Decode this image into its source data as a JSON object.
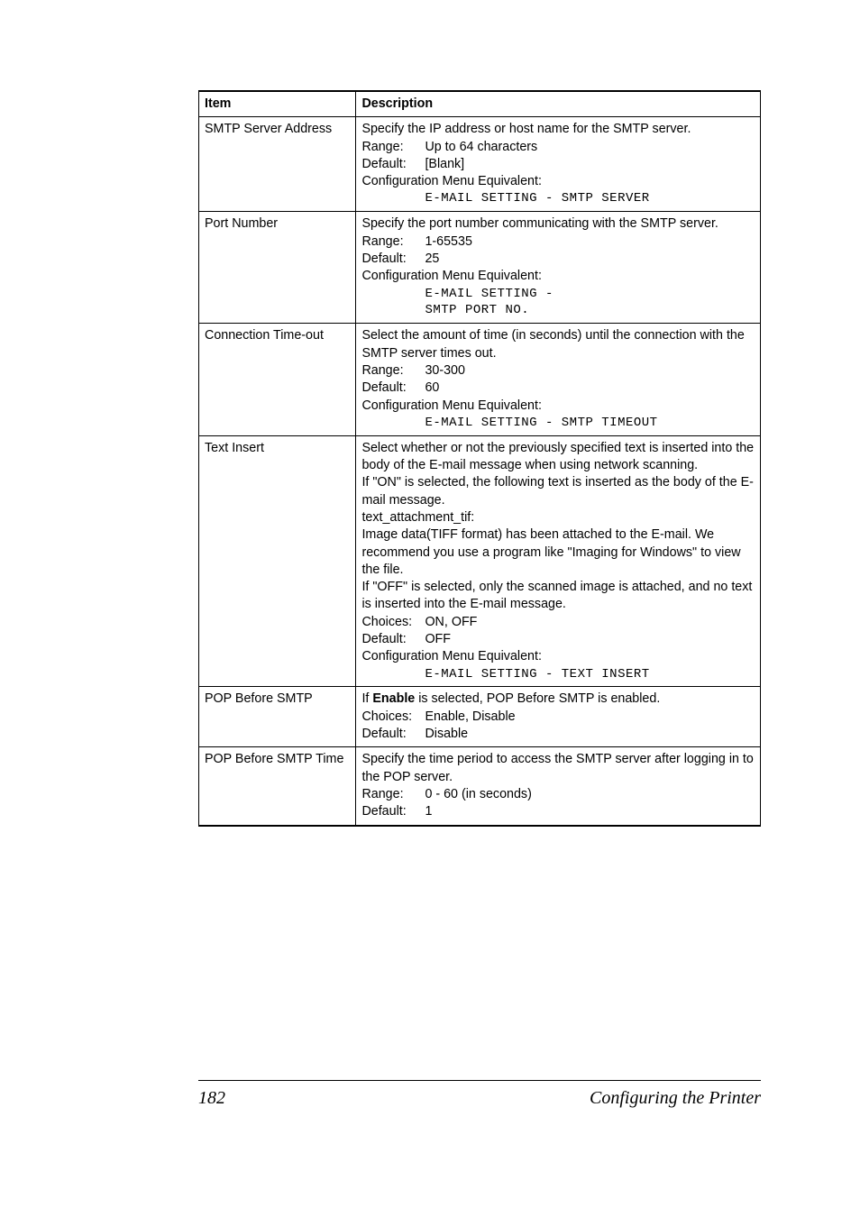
{
  "table": {
    "header_item": "Item",
    "header_description": "Description",
    "rows": [
      {
        "item": "SMTP Server Address",
        "line1": "Specify the IP address or host name for the SMTP server.",
        "range_label": "Range:",
        "range_value": "Up to 64 characters",
        "default_label": "Default:",
        "default_value": "[Blank]",
        "config_label": "Configuration Menu Equivalent:",
        "mono1": "E-MAIL SETTING - SMTP SERVER"
      },
      {
        "item": "Port Number",
        "line1": "Specify the port number communicating with the SMTP server.",
        "range_label": "Range:",
        "range_value": "1-65535",
        "default_label": "Default:",
        "default_value": "25",
        "config_label": "Configuration Menu Equivalent:",
        "mono1": "E-MAIL SETTING -",
        "mono2": "SMTP PORT NO."
      },
      {
        "item": "Connection Time-out",
        "line1": "Select the amount of time (in seconds) until the connection with the SMTP server times out.",
        "range_label": "Range:",
        "range_value": "30-300",
        "default_label": "Default:",
        "default_value": "60",
        "config_label": "Configuration Menu Equivalent:",
        "mono1": "E-MAIL SETTING - SMTP TIMEOUT"
      },
      {
        "item": "Text Insert",
        "para1": "Select whether or not the previously specified text is inserted into the body of the E-mail message when using network scanning.",
        "para2a": "If \"ON\" is selected, the following text is inserted as the body of the E-mail message.",
        "para2b": "text_attachment_tif:",
        "para2c": "Image data(TIFF format) has been attached to the E-mail. We recommend you use a program like \"Imaging for Windows\" to view the file.",
        "para3": "If \"OFF\" is selected, only the scanned image is attached, and no text is inserted into the E-mail message.",
        "choices_label": "Choices:",
        "choices_value": "ON, OFF",
        "default_label": "Default:",
        "default_value": "OFF",
        "config_label": "Configuration Menu Equivalent:",
        "mono1": "E-MAIL SETTING - TEXT INSERT"
      },
      {
        "item": "POP Before SMTP",
        "line1a": "If ",
        "line1b": "Enable",
        "line1c": " is selected, POP Before SMTP is enabled.",
        "choices_label": "Choices:",
        "choices_value": "Enable, Disable",
        "default_label": "Default:",
        "default_value": "Disable"
      },
      {
        "item": "POP Before SMTP Time",
        "line1": "Specify the time period to access the SMTP server after logging in to the POP server.",
        "range_label": "Range:",
        "range_value": "0 - 60 (in seconds)",
        "default_label": "Default:",
        "default_value": "1"
      }
    ]
  },
  "footer": {
    "page": "182",
    "title": "Configuring the Printer"
  }
}
